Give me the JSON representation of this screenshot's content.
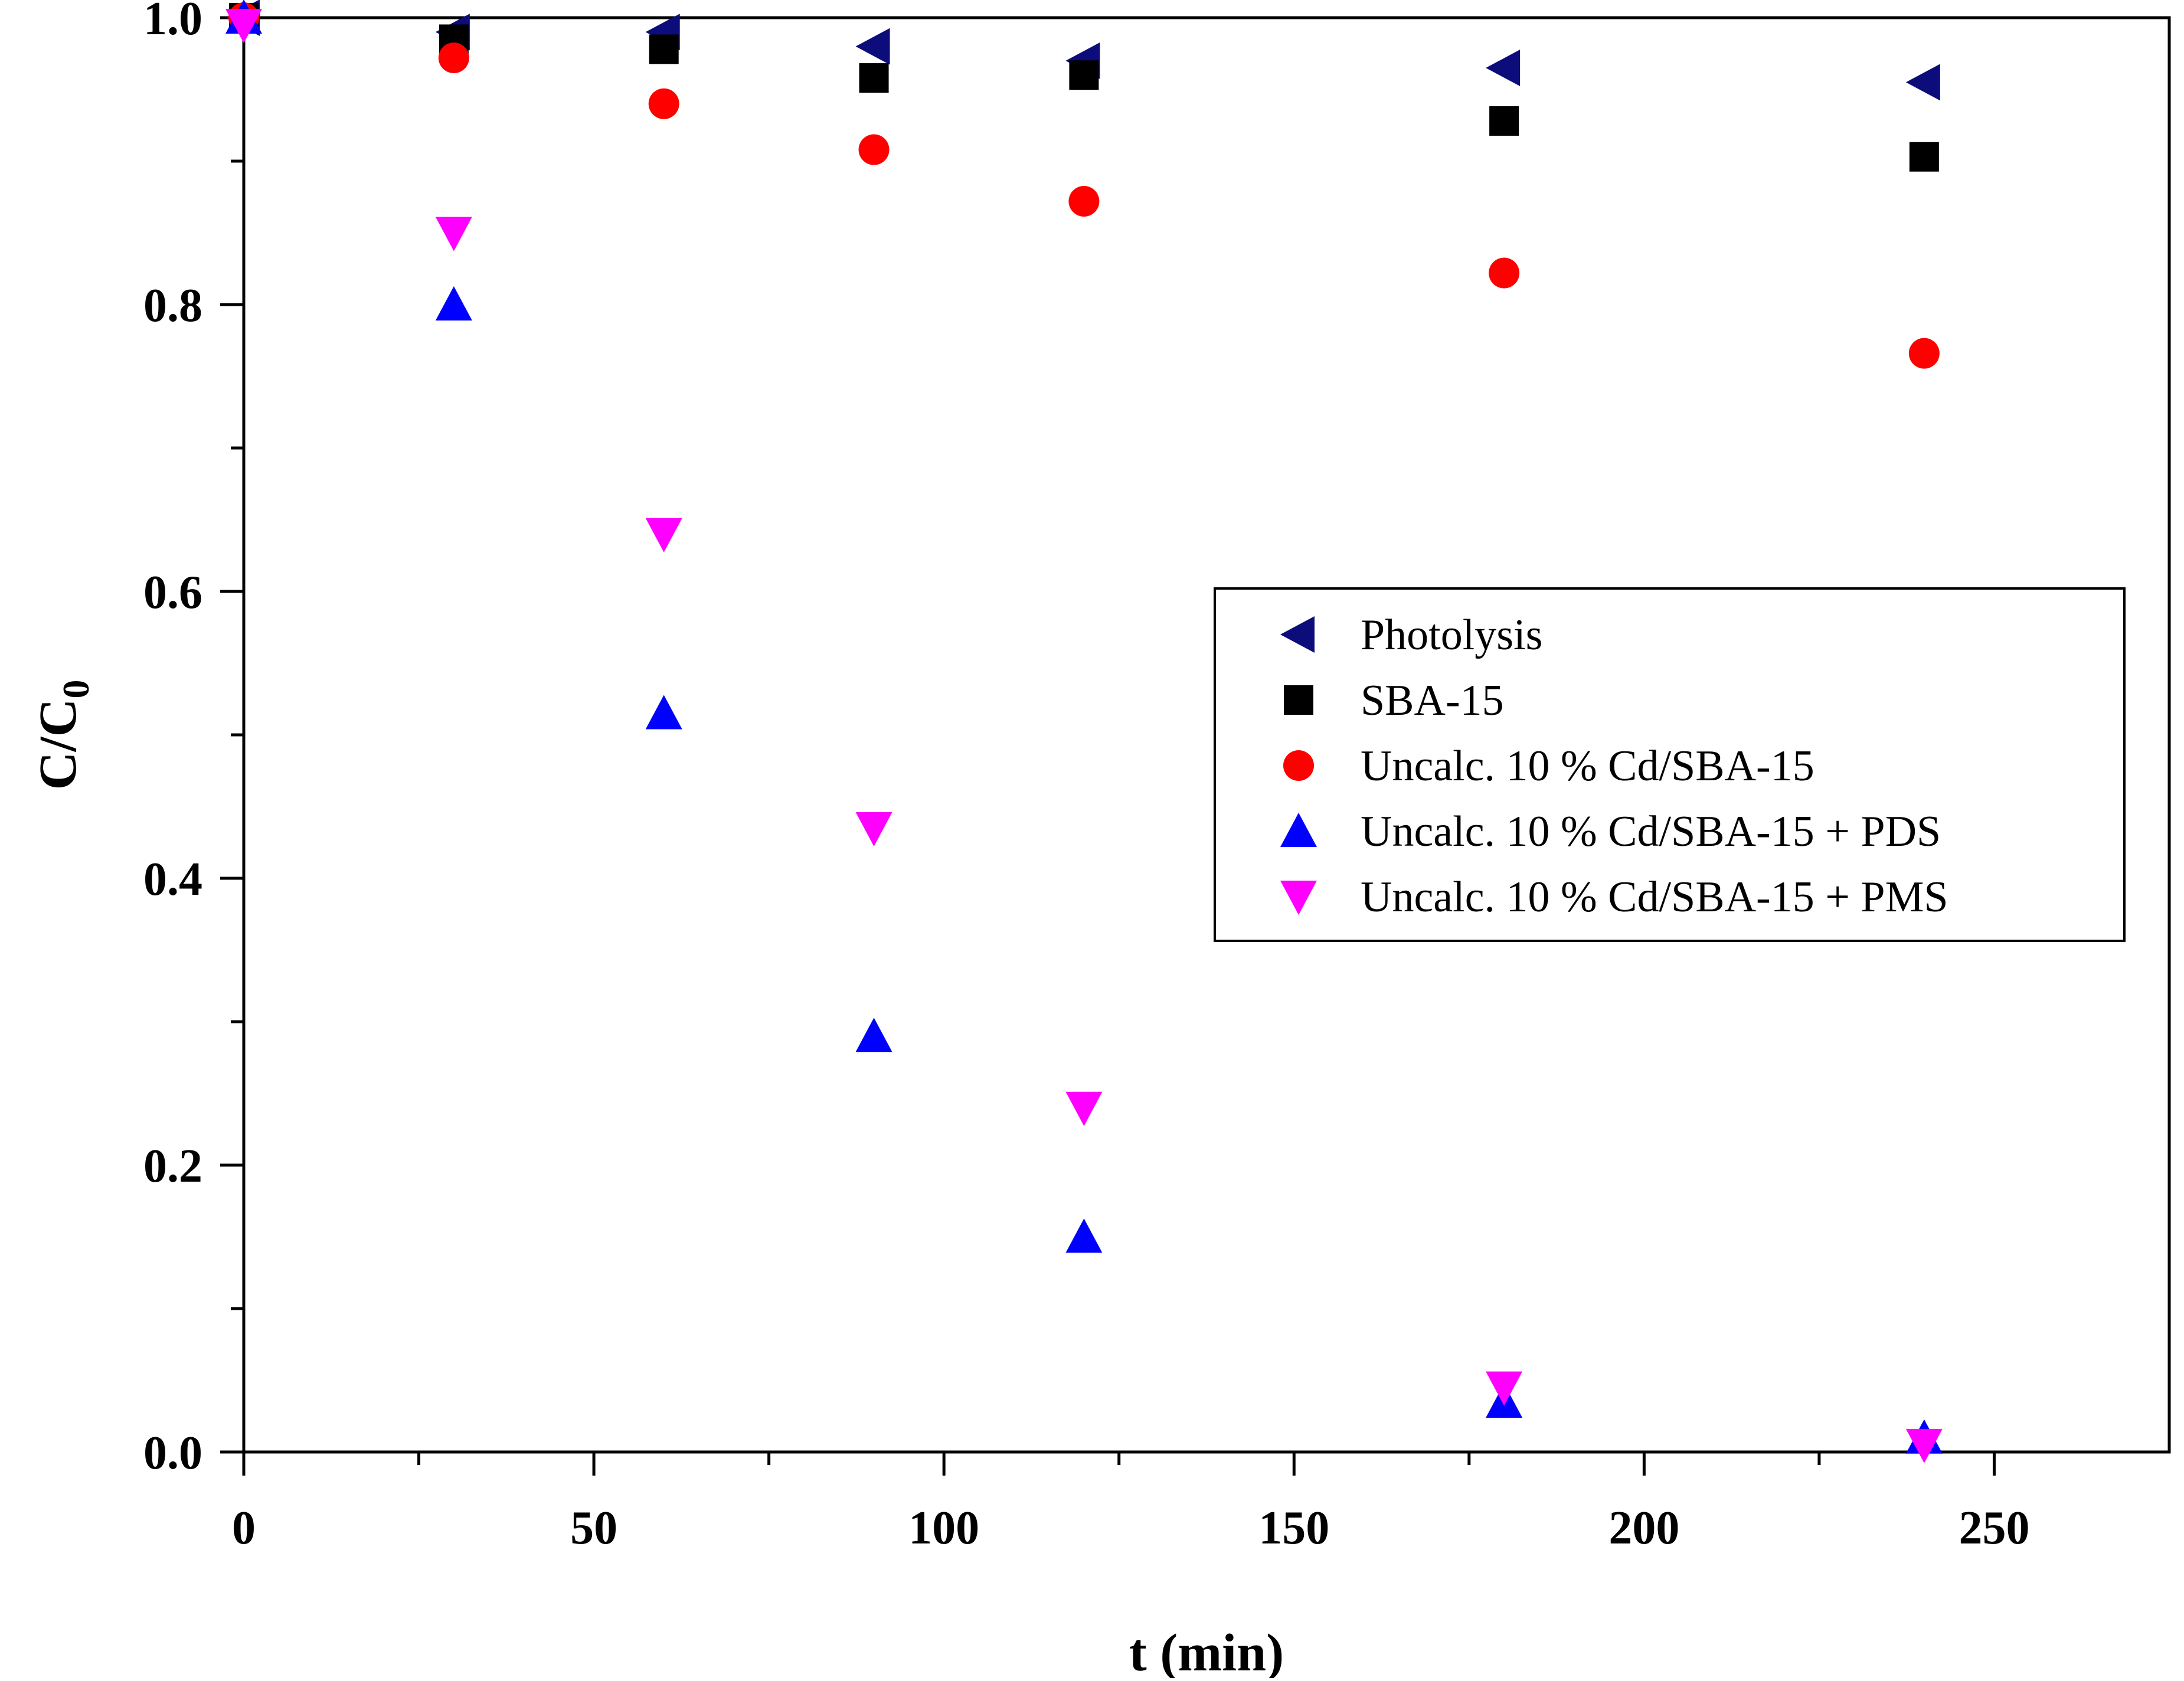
{
  "chart_data": {
    "type": "scatter",
    "title": "",
    "xlabel": "t (min)",
    "ylabel": "C/C",
    "ylabel_subscript": "0",
    "xlim": [
      0,
      275
    ],
    "ylim": [
      0,
      1.0
    ],
    "x_ticks": [
      0,
      50,
      100,
      150,
      200,
      250
    ],
    "x_tick_labels": [
      "0",
      "50",
      "100",
      "150",
      "200",
      "250"
    ],
    "y_ticks": [
      0,
      0.2,
      0.4,
      0.6,
      0.8,
      1.0
    ],
    "y_tick_labels": [
      "0.0",
      "0.2",
      "0.4",
      "0.6",
      "0.8",
      "1.0"
    ],
    "grid": false,
    "legend_position": "center-right",
    "series": [
      {
        "name": "Photolysis",
        "marker": "triangle-left",
        "color": "#0c0c7a",
        "x": [
          0,
          30,
          60,
          90,
          120,
          180,
          240
        ],
        "y": [
          1.0,
          0.99,
          0.99,
          0.98,
          0.97,
          0.965,
          0.955
        ]
      },
      {
        "name": "SBA-15",
        "marker": "square",
        "color": "#000000",
        "x": [
          0,
          30,
          60,
          90,
          120,
          180,
          240
        ],
        "y": [
          1.0,
          0.985,
          0.978,
          0.958,
          0.96,
          0.928,
          0.903
        ]
      },
      {
        "name": "Uncalc. 10 % Cd/SBA-15",
        "marker": "circle",
        "color": "#ff0000",
        "x": [
          0,
          30,
          60,
          90,
          120,
          180,
          240
        ],
        "y": [
          1.0,
          0.972,
          0.94,
          0.908,
          0.872,
          0.822,
          0.766
        ]
      },
      {
        "name": "Uncalc. 10 % Cd/SBA-15 + PDS",
        "marker": "triangle-up",
        "color": "#0000ff",
        "x": [
          0,
          30,
          60,
          90,
          120,
          180,
          240
        ],
        "y": [
          1.0,
          0.8,
          0.515,
          0.29,
          0.15,
          0.035,
          0.01
        ]
      },
      {
        "name": "Uncalc. 10 % Cd/SBA-15 + PMS",
        "marker": "triangle-down",
        "color": "#ff00ff",
        "x": [
          0,
          30,
          60,
          90,
          120,
          180,
          240
        ],
        "y": [
          0.995,
          0.85,
          0.64,
          0.435,
          0.24,
          0.045,
          0.005
        ]
      }
    ]
  }
}
